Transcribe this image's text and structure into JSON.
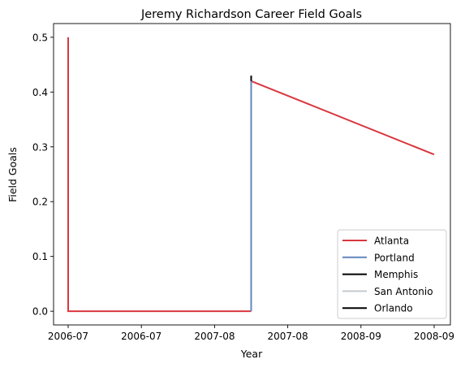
{
  "chart_data": {
    "type": "line",
    "title": "Jeremy Richardson Career Field Goals",
    "xlabel": "Year",
    "ylabel": "Field Goals",
    "x_ticks": [
      "2006-07",
      "2006-07",
      "2007-08",
      "2007-08",
      "2008-09",
      "2008-09"
    ],
    "y_ticks": [
      "0.0",
      "0.1",
      "0.2",
      "0.3",
      "0.4",
      "0.5"
    ],
    "x_range": [
      0,
      5
    ],
    "ylim": [
      -0.025,
      0.525
    ],
    "grid": false,
    "legend_position": "lower right",
    "series": [
      {
        "name": "Atlanta",
        "color": "#d9383f",
        "points": [
          [
            0,
            0.5
          ],
          [
            0,
            0.0
          ],
          [
            2.5,
            0.0
          ]
        ]
      },
      {
        "name": "Atlanta",
        "color": "#d9383f",
        "points": [
          [
            2.5,
            0.42
          ],
          [
            5,
            0.286
          ]
        ]
      },
      {
        "name": "Portland",
        "color": "#6286bd",
        "points": [
          [
            2.5,
            0.0
          ],
          [
            2.5,
            0.42
          ]
        ]
      },
      {
        "name": "Memphis",
        "color": "#000000",
        "points": [
          [
            2.5,
            0.43
          ],
          [
            2.5,
            0.42
          ]
        ]
      },
      {
        "name": "San Antonio",
        "color": "#c5cacd",
        "points": []
      },
      {
        "name": "Orlando",
        "color": "#000000",
        "points": []
      }
    ],
    "legend": [
      {
        "label": "Atlanta",
        "color": "#d9383f"
      },
      {
        "label": "Portland",
        "color": "#6286bd"
      },
      {
        "label": "Memphis",
        "color": "#000000"
      },
      {
        "label": "San Antonio",
        "color": "#c5cacd"
      },
      {
        "label": "Orlando",
        "color": "#000000"
      }
    ]
  }
}
